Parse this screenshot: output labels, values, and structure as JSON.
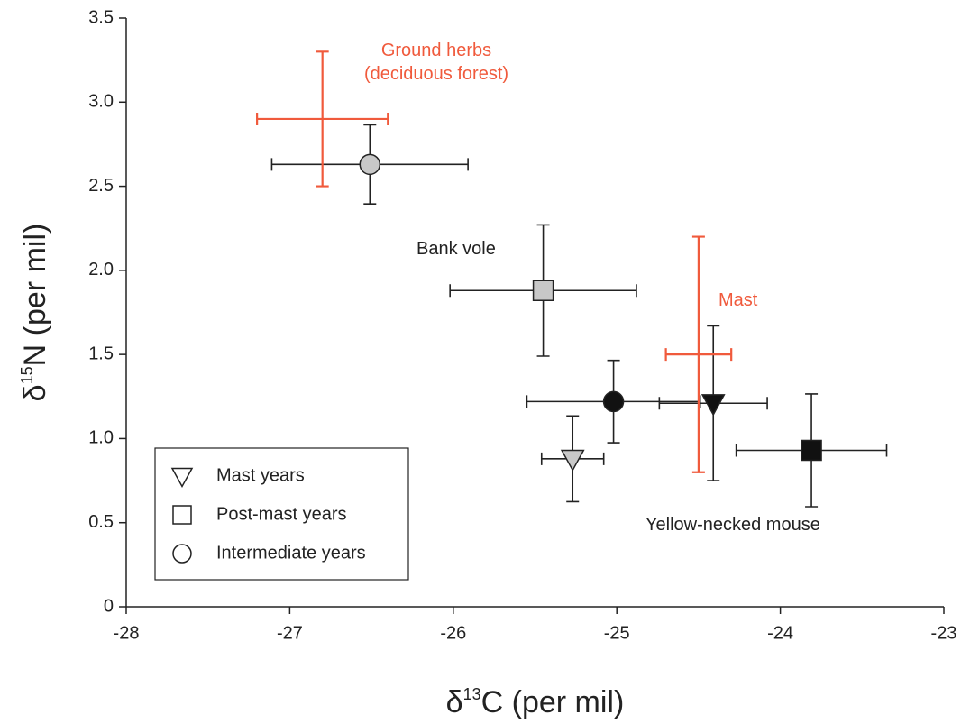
{
  "chart_data": {
    "type": "scatter",
    "xlabel": {
      "symbol": "δ",
      "sup": "13",
      "rest": "C (per mil)"
    },
    "ylabel": {
      "symbol": "δ",
      "sup": "15",
      "rest": "N (per mil)"
    },
    "xlim": [
      -28,
      -23
    ],
    "xticks": [
      -28,
      -27,
      -26,
      -25,
      -24,
      -23
    ],
    "ylim": [
      0,
      3.5
    ],
    "yticks": [
      0,
      0.5,
      {
        "value": 1,
        "label": "1.0"
      },
      1.5,
      {
        "value": 2,
        "label": "2.0"
      },
      2.5,
      {
        "value": 3,
        "label": "3.0"
      },
      3.5
    ],
    "series": [
      {
        "label": [
          "Bank vole"
        ],
        "color": "#c8c8c8",
        "line_color": "#222222",
        "x": [
          -26.51,
          -25.45,
          -25.27
        ],
        "y": [
          2.63,
          1.88,
          0.88
        ],
        "xerr": [
          0.6,
          0.57,
          0.19
        ],
        "yerr": [
          0.235,
          0.39,
          0.255
        ],
        "markers": [
          "circle",
          "square",
          "triangle"
        ]
      },
      {
        "label": [
          "Yellow-necked mouse"
        ],
        "color": "#111111",
        "line_color": "#222222",
        "x": [
          -25.02,
          -24.41,
          -23.81
        ],
        "y": [
          1.22,
          1.21,
          0.93
        ],
        "xerr": [
          0.53,
          0.33,
          0.46
        ],
        "yerr": [
          0.245,
          0.46,
          0.335
        ],
        "markers": [
          "circle",
          "triangle",
          "square"
        ]
      },
      {
        "label": [
          "Ground herbs",
          "(deciduous forest)"
        ],
        "color": "#f05a3c",
        "line_color": "#f05a3c",
        "x": [
          -26.8
        ],
        "y": [
          2.9
        ],
        "xerr": [
          0.4
        ],
        "yerr": [
          0.4
        ],
        "markers": [
          null
        ]
      },
      {
        "label": [
          "Mast"
        ],
        "color": "#f05a3c",
        "line_color": "#f05a3c",
        "x": [
          -24.5
        ],
        "y": [
          1.5
        ],
        "xerr": [
          0.2
        ],
        "yerr": [
          0.7
        ],
        "markers": [
          null
        ]
      }
    ],
    "legend": [
      {
        "label": "Mast years",
        "marker": "triangle"
      },
      {
        "label": "Post-mast years",
        "marker": "square"
      },
      {
        "label": "Intermediate years",
        "marker": "circle"
      }
    ],
    "legend_position": "lower left"
  }
}
